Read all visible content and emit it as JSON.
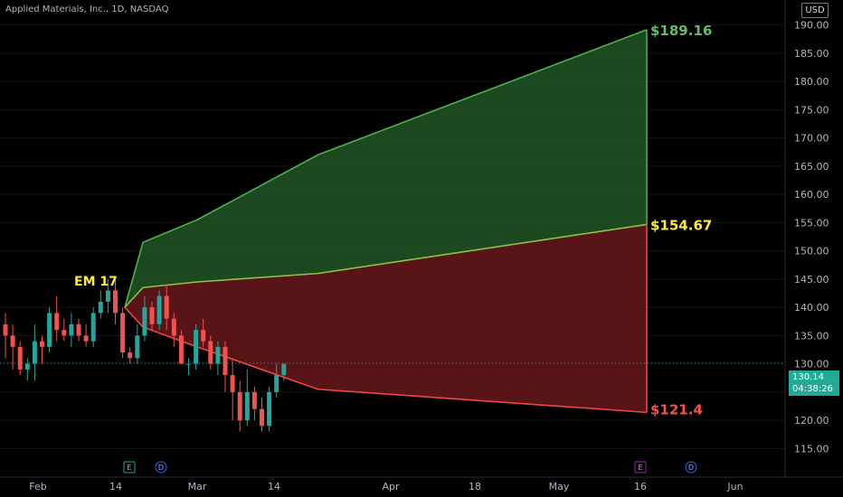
{
  "header": {
    "title": "Applied Materials, Inc., 1D, NASDAQ",
    "currency": "USD"
  },
  "price_tag": {
    "price": "130.14",
    "countdown": "04:38:26"
  },
  "colors": {
    "up": "#26a69a",
    "down": "#ef5350",
    "green_fill": "#1f4d23",
    "red_fill": "#5e1519",
    "green_line": "#4caf50",
    "red_line": "#f44345",
    "mid_line": "#8bc34a"
  },
  "chart_data": {
    "type": "candlestick",
    "title": "Applied Materials, Inc., 1D, NASDAQ",
    "ylim": [
      112.5,
      192.5
    ],
    "y_ticks": [
      115,
      120,
      125,
      130,
      135,
      140,
      145,
      150,
      155,
      160,
      165,
      170,
      175,
      180,
      185,
      190
    ],
    "x_ticks": [
      "Feb",
      "14",
      "Mar",
      "14",
      "Apr",
      "18",
      "May",
      "16",
      "Jun"
    ],
    "last_price": 130.14,
    "candles": [
      [
        137,
        135,
        131,
        139
      ],
      [
        135,
        133,
        129,
        137
      ],
      [
        133,
        129,
        128,
        134
      ],
      [
        129,
        130,
        127,
        131
      ],
      [
        130,
        134,
        127,
        137
      ],
      [
        134,
        133,
        130,
        135
      ],
      [
        133,
        139,
        132,
        140
      ],
      [
        139,
        136,
        134,
        142
      ],
      [
        136,
        135,
        134,
        138
      ],
      [
        135,
        137,
        133,
        139
      ],
      [
        137,
        135,
        134,
        138
      ],
      [
        135,
        134,
        133,
        137
      ],
      [
        134,
        139,
        133,
        140
      ],
      [
        139,
        141,
        138,
        143
      ],
      [
        141,
        143,
        139,
        145
      ],
      [
        143,
        139,
        137,
        145
      ],
      [
        139,
        132,
        131,
        140
      ],
      [
        132,
        131,
        130,
        133
      ],
      [
        131,
        135,
        130,
        137
      ],
      [
        135,
        140,
        134,
        142
      ],
      [
        140,
        137,
        136,
        141
      ],
      [
        137,
        142,
        136,
        143
      ],
      [
        142,
        138,
        136,
        144
      ],
      [
        138,
        135,
        133,
        139
      ],
      [
        135,
        130,
        130,
        136
      ],
      [
        130,
        130,
        128,
        131
      ],
      [
        130,
        136,
        129,
        137
      ],
      [
        136,
        134,
        133,
        138
      ],
      [
        134,
        130,
        129,
        135
      ],
      [
        130,
        133,
        128,
        134
      ],
      [
        133,
        128,
        125,
        134
      ],
      [
        128,
        125,
        120,
        131
      ],
      [
        125,
        120,
        118,
        127
      ],
      [
        120,
        125,
        119,
        129
      ],
      [
        125,
        122,
        120,
        126
      ],
      [
        122,
        119,
        118,
        124
      ],
      [
        119,
        125,
        118,
        126
      ],
      [
        125,
        128,
        124,
        130
      ],
      [
        128,
        130,
        127,
        130
      ]
    ],
    "expected_move": {
      "label": "EM 17",
      "x_dates": [
        "Feb 16",
        "Feb 20",
        "Mar 1",
        "Mar 20",
        "May 17"
      ],
      "upper": [
        140,
        151.5,
        155.5,
        167,
        189.16
      ],
      "mid": [
        140,
        143.5,
        144.5,
        146,
        154.67
      ],
      "lower": [
        140,
        136.5,
        133,
        125.5,
        121.4
      ],
      "labels": [
        "$189.16",
        "$154.67",
        "$121.4"
      ],
      "events": [
        {
          "x_date": "Feb 17",
          "label": "E"
        },
        {
          "x_date": "Feb 24",
          "label": "D"
        },
        {
          "x_date": "May 16",
          "label": "E"
        },
        {
          "x_date": "May 24",
          "label": "D"
        }
      ]
    }
  }
}
